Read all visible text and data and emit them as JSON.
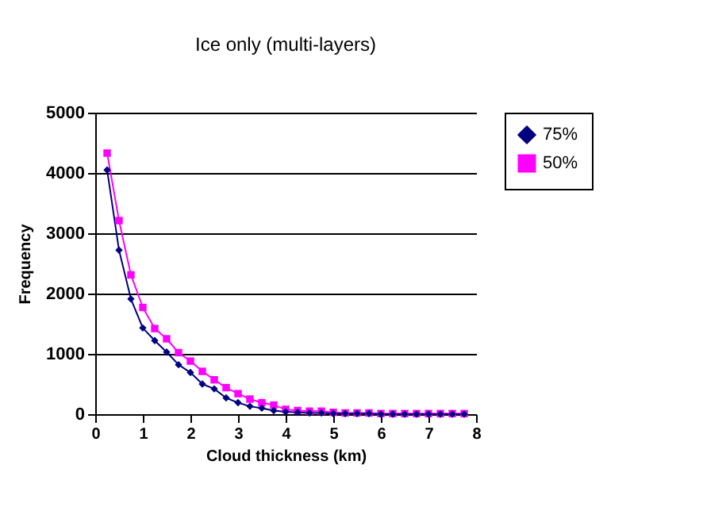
{
  "chart_data": {
    "type": "line",
    "title": "Ice only (multi-layers)",
    "xlabel": "Cloud thickness (km)",
    "ylabel": "Frequency",
    "x": [
      0.25,
      0.5,
      0.75,
      1,
      1.25,
      1.5,
      1.75,
      2,
      2.25,
      2.5,
      2.75,
      3,
      3.25,
      3.5,
      3.75,
      4,
      4.25,
      4.5,
      4.75,
      5,
      5.25,
      5.5,
      5.75,
      6,
      6.25,
      6.5,
      6.75,
      7,
      7.25,
      7.5,
      7.75
    ],
    "series": [
      {
        "name": "75%",
        "color": "#000080",
        "marker": "diamond",
        "values": [
          4050,
          2720,
          1910,
          1430,
          1220,
          1030,
          820,
          690,
          500,
          420,
          270,
          190,
          130,
          100,
          60,
          40,
          30,
          20,
          20,
          10,
          10,
          10,
          10,
          0,
          0,
          0,
          0,
          0,
          0,
          0,
          0
        ]
      },
      {
        "name": "50%",
        "color": "#ff00ff",
        "marker": "square",
        "values": [
          4330,
          3210,
          2310,
          1770,
          1420,
          1250,
          1020,
          880,
          710,
          570,
          440,
          340,
          250,
          190,
          150,
          80,
          60,
          50,
          50,
          30,
          20,
          20,
          20,
          10,
          10,
          10,
          10,
          10,
          10,
          10,
          10
        ]
      }
    ],
    "xlim": [
      0,
      8
    ],
    "xticks": [
      0,
      1,
      2,
      3,
      4,
      5,
      6,
      7,
      8
    ],
    "ylim": [
      0,
      5000
    ],
    "yticks": [
      0,
      1000,
      2000,
      3000,
      4000,
      5000
    ],
    "grid": "y",
    "legend": "right",
    "line_style": "solid"
  }
}
